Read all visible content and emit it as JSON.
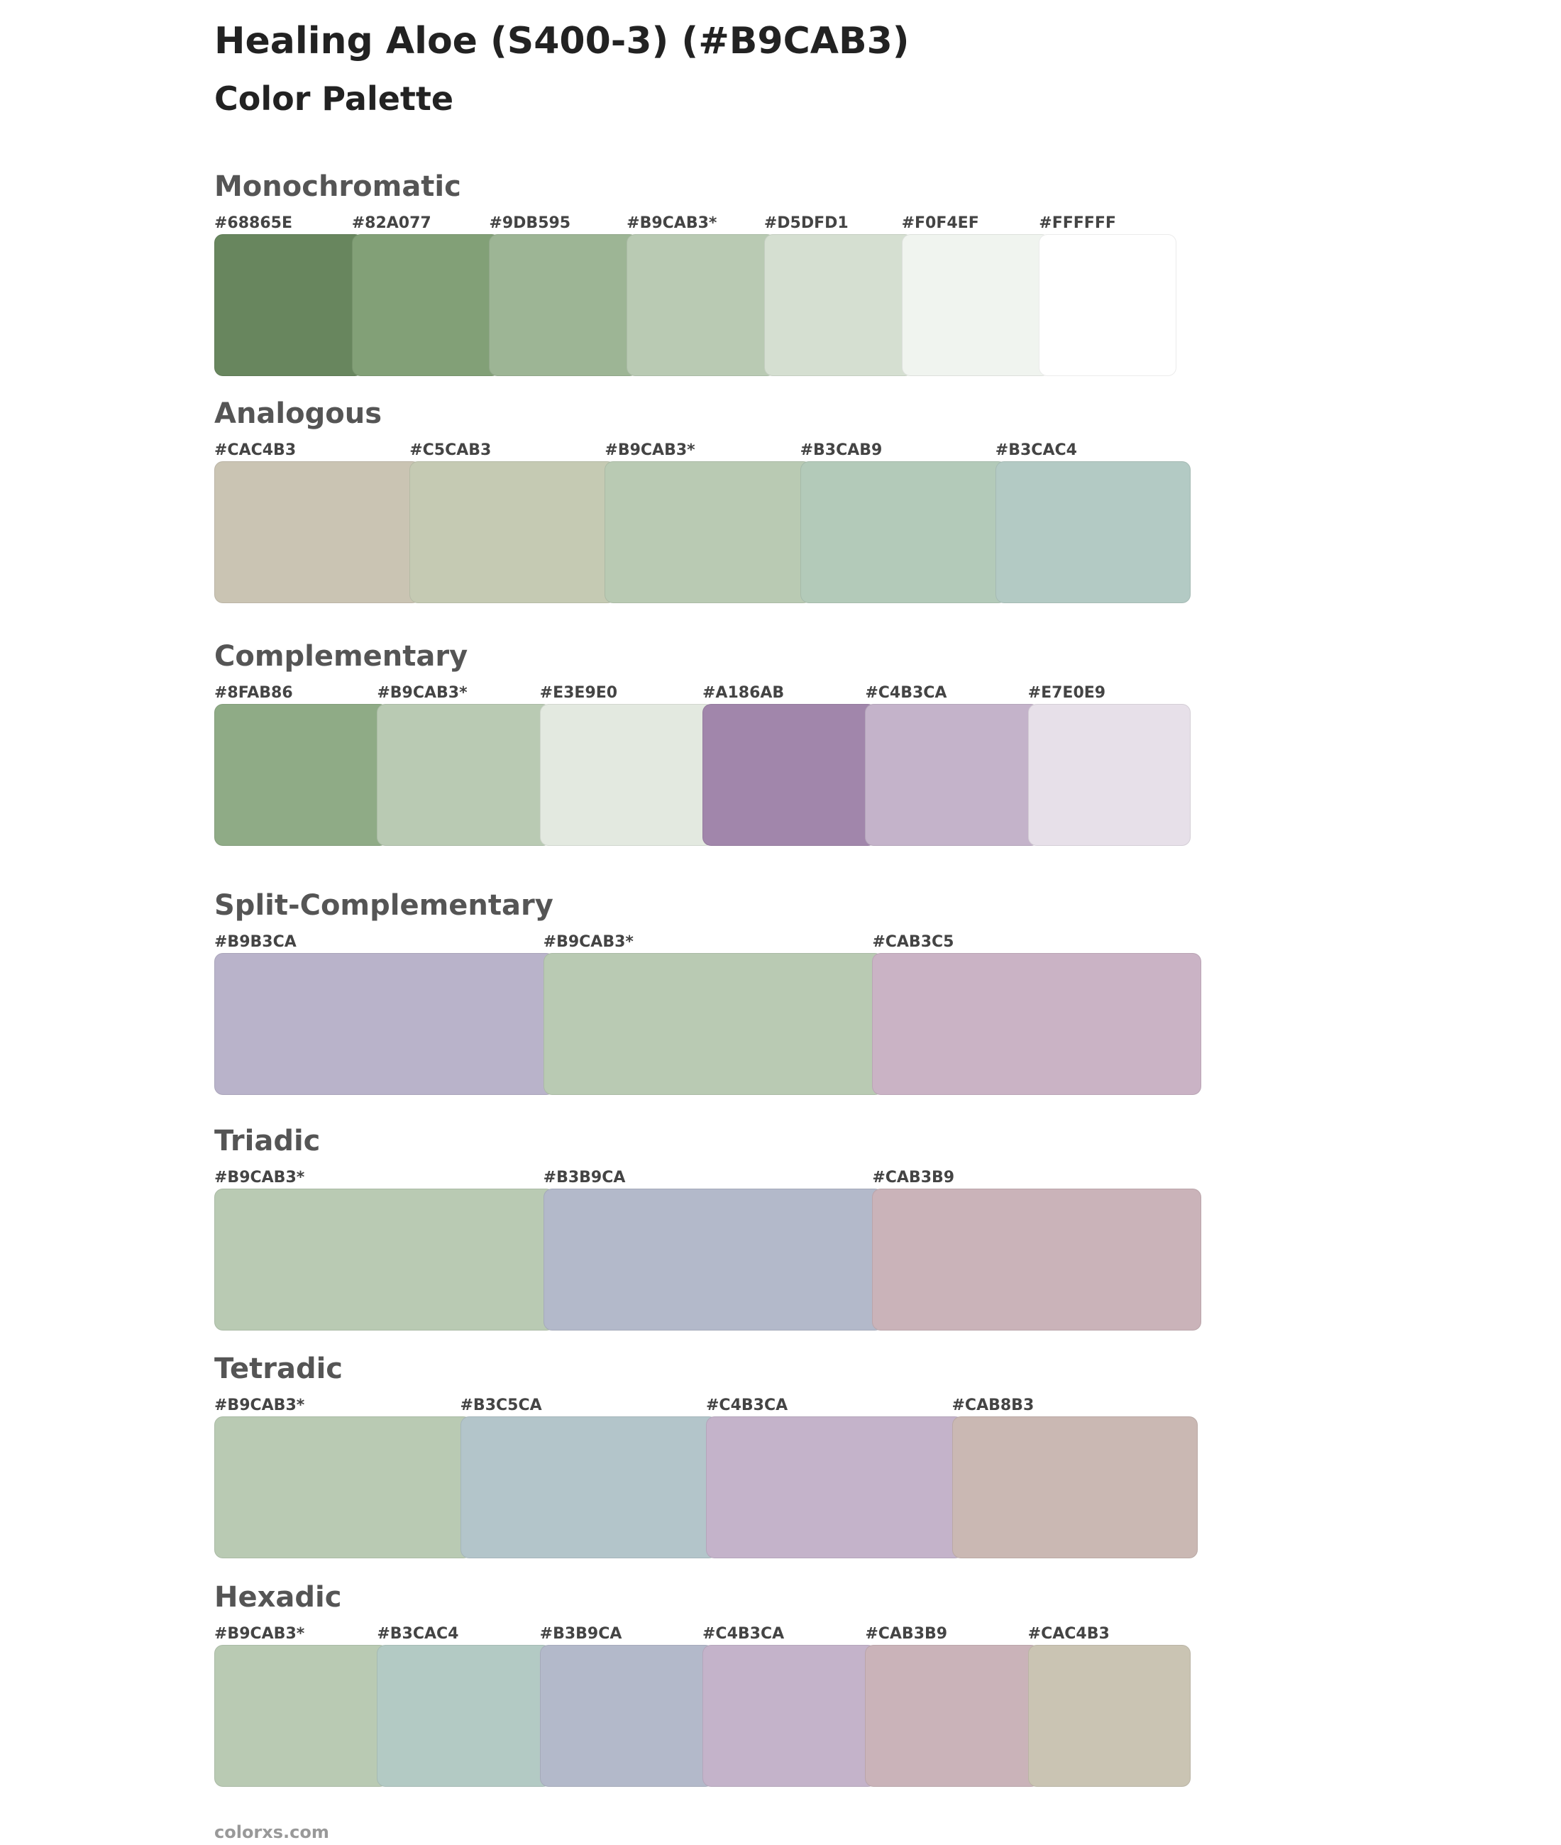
{
  "header": {
    "title": "Healing Aloe (S400-3) (#B9CAB3)",
    "subtitle": "Color Palette"
  },
  "sections": [
    {
      "name": "Monochromatic",
      "colors": [
        "#68865E",
        "#82A077",
        "#9DB595",
        "#B9CAB3*",
        "#D5DFD1",
        "#F0F4EF",
        "#FFFFFF"
      ]
    },
    {
      "name": "Analogous",
      "colors": [
        "#CAC4B3",
        "#C5CAB3",
        "#B9CAB3*",
        "#B3CAB9",
        "#B3CAC4"
      ]
    },
    {
      "name": "Complementary",
      "colors": [
        "#8FAB86",
        "#B9CAB3*",
        "#E3E9E0",
        "#A186AB",
        "#C4B3CA",
        "#E7E0E9"
      ]
    },
    {
      "name": "Split-Complementary",
      "colors": [
        "#B9B3CA",
        "#B9CAB3*",
        "#CAB3C5"
      ]
    },
    {
      "name": "Triadic",
      "colors": [
        "#B9CAB3*",
        "#B3B9CA",
        "#CAB3B9"
      ]
    },
    {
      "name": "Tetradic",
      "colors": [
        "#B9CAB3*",
        "#B3C5CA",
        "#C4B3CA",
        "#CAB8B3"
      ]
    },
    {
      "name": "Hexadic",
      "colors": [
        "#B9CAB3*",
        "#B3CAC4",
        "#B3B9CA",
        "#C4B3CA",
        "#CAB3B9",
        "#CAC4B3"
      ]
    }
  ],
  "footer": "colorxs.com"
}
